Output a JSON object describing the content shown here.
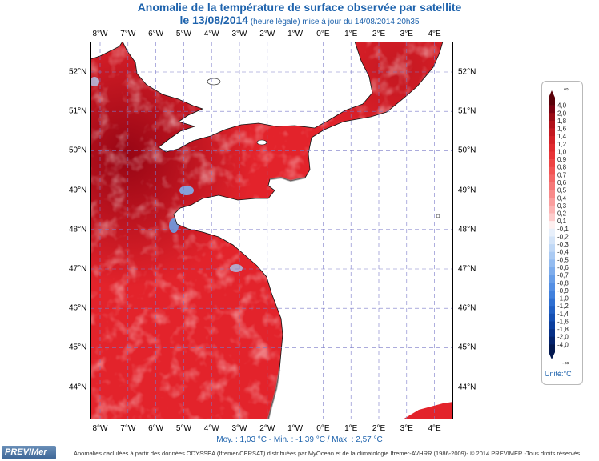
{
  "title": {
    "line1": "Anomalie de la température de surface observée par satellite",
    "line2_date": "le 13/08/2014",
    "line2_sub": " (heure légale) mise à jour du 14/08/2014 20h35"
  },
  "axes": {
    "lon_labels": [
      "8°W",
      "7°W",
      "6°W",
      "5°W",
      "4°W",
      "3°W",
      "2°W",
      "1°W",
      "0°E",
      "1°E",
      "2°E",
      "3°E",
      "4°E"
    ],
    "lat_labels": [
      "52°N",
      "51°N",
      "50°N",
      "49°N",
      "48°N",
      "47°N",
      "46°N",
      "45°N",
      "44°N"
    ]
  },
  "stats": "Moy. : 1,03 °C   -   Min. : -1,39 °C / Max. : 2,57 °C",
  "credit": "Anomalies caclulées à partir des données ODYSSEA (Ifremer/CERSAT) distribuées par MyOcean et de la climatologie Ifremer-AVHRR (1986-2009)- © 2014 PREVIMER -Tous droits réservés",
  "logo": "PREVIMer",
  "legend": {
    "unit": "Unité:°C",
    "top_symbol": "∞",
    "bottom_symbol": "-∞",
    "labels": [
      "4,0",
      "2,0",
      "1,8",
      "1,6",
      "1,4",
      "1,2",
      "1,0",
      "0,9",
      "0,8",
      "0,7",
      "0,6",
      "0,5",
      "0,4",
      "0,3",
      "0,2",
      "0,1",
      "-0,1",
      "-0,2",
      "-0,3",
      "-0,4",
      "-0,5",
      "-0,6",
      "-0,7",
      "-0,8",
      "-0,9",
      "-1,0",
      "-1,2",
      "-1,4",
      "-1,6",
      "-1,8",
      "-2,0",
      "-4,0"
    ],
    "colors": [
      "#5a0008",
      "#7a0010",
      "#980a14",
      "#b0101a",
      "#c41820",
      "#d42026",
      "#e02a2e",
      "#e83438",
      "#ee4444",
      "#f25454",
      "#f46666",
      "#f67878",
      "#f88a8a",
      "#fa9e9e",
      "#fcb4b4",
      "#fdcccc",
      "#fef0f0",
      "#e8f0fb",
      "#d4e4f8",
      "#c0d8f6",
      "#aacaf3",
      "#94bcf0",
      "#7eadec",
      "#689ee8",
      "#548fe4",
      "#4080dd",
      "#2e6fd2",
      "#205fc4",
      "#154fb2",
      "#0c3f9e",
      "#062f86",
      "#03226c",
      "#021850"
    ]
  },
  "colors": {
    "sea": "#e3232b",
    "land": "#ffffff",
    "grid": "#7a7ac8"
  }
}
